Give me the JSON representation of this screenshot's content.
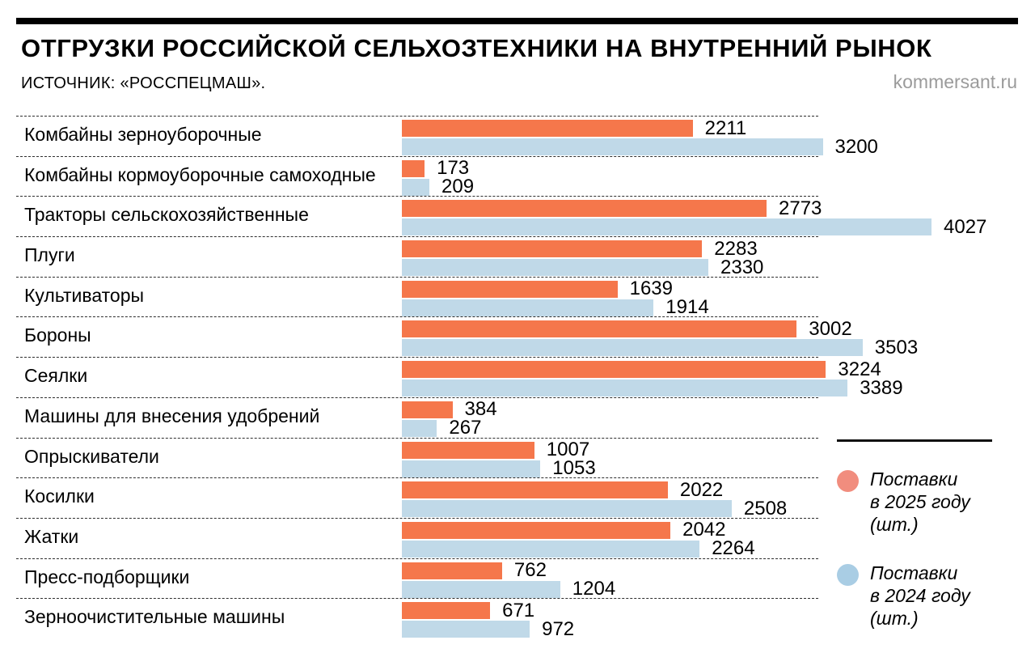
{
  "header": {
    "title": "ОТГРУЗКИ РОССИЙСКОЙ СЕЛЬХОЗТЕХНИКИ НА ВНУТРЕННИЙ РЫНОК",
    "source": "ИСТОЧНИК: «РОССПЕЦМАШ».",
    "site": "kommersant.ru"
  },
  "colors": {
    "bar_2025": "#F5774B",
    "bar_2024": "#C0D9E8",
    "legend_2025": "#F18D7E",
    "legend_2024": "#A9CDE4"
  },
  "legend": {
    "items": [
      {
        "id": "2025",
        "label_lines": [
          "Поставки",
          "в 2025 году",
          "(шт.)"
        ],
        "color": "#F18D7E"
      },
      {
        "id": "2024",
        "label_lines": [
          "Поставки",
          "в 2024 году",
          "(шт.)"
        ],
        "color": "#A9CDE4"
      }
    ]
  },
  "chart_data": {
    "type": "bar",
    "orientation": "horizontal",
    "title": "ОТГРУЗКИ РОССИЙСКОЙ СЕЛЬХОЗТЕХНИКИ НА ВНУТРЕННИЙ РЫНОК",
    "source": "РОССПЕЦМАШ",
    "xlim": [
      0,
      4027
    ],
    "grid": false,
    "legend_position": "right",
    "categories": [
      "Комбайны зерноуборочные",
      "Комбайны кормоуборочные самоходные",
      "Тракторы сельскохозяйственные",
      "Плуги",
      "Культиваторы",
      "Бороны",
      "Сеялки",
      "Машины для внесения удобрений",
      "Опрыскиватели",
      "Косилки",
      "Жатки",
      "Пресс-подборщики",
      "Зерноочистительные машины"
    ],
    "series": [
      {
        "name": "Поставки в 2025 году (шт.)",
        "values": [
          2211,
          173,
          2773,
          2283,
          1639,
          3002,
          3224,
          384,
          1007,
          2022,
          2042,
          762,
          671
        ]
      },
      {
        "name": "Поставки в 2024 году (шт.)",
        "values": [
          3200,
          209,
          4027,
          2330,
          1914,
          3503,
          3389,
          267,
          1053,
          2508,
          2264,
          1204,
          972
        ]
      }
    ]
  }
}
